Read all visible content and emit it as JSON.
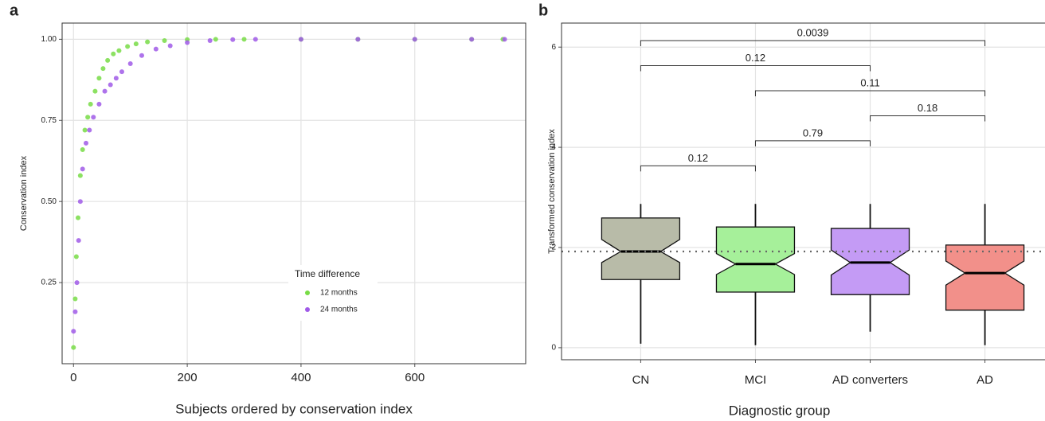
{
  "chart_data": [
    {
      "type": "scatter",
      "panel_label": "a",
      "x_label": "Subjects ordered by conservation index",
      "y_label": "Conservation index",
      "legend_title": "Time difference",
      "xlim": [
        -20,
        795
      ],
      "ylim": [
        0.0,
        1.05
      ],
      "xticks": [
        0,
        200,
        400,
        600
      ],
      "yticks": [
        0.25,
        {
          "value": 0.5,
          "label": "0.50"
        },
        0.75,
        {
          "value": 1.0,
          "label": "1.00"
        }
      ],
      "grid": true,
      "series": [
        {
          "name": "12 months",
          "color": "#78dc46",
          "x": [
            0,
            3,
            5,
            8,
            12,
            16,
            20,
            25,
            30,
            38,
            45,
            52,
            60,
            70,
            80,
            95,
            110,
            130,
            160,
            200,
            250,
            300,
            400,
            500,
            600,
            700,
            755
          ],
          "values": [
            0.05,
            0.2,
            0.33,
            0.45,
            0.58,
            0.66,
            0.72,
            0.76,
            0.8,
            0.84,
            0.88,
            0.91,
            0.935,
            0.955,
            0.965,
            0.978,
            0.986,
            0.992,
            0.996,
            0.999,
            1.0,
            1.0,
            1.0,
            1.0,
            1.0,
            1.0,
            1.0
          ]
        },
        {
          "name": "24 months",
          "color": "#a05ae8",
          "x": [
            0,
            3,
            6,
            9,
            12,
            16,
            22,
            28,
            35,
            45,
            55,
            65,
            75,
            85,
            100,
            120,
            145,
            170,
            200,
            240,
            280,
            320,
            400,
            500,
            600,
            700,
            758
          ],
          "values": [
            0.1,
            0.16,
            0.25,
            0.38,
            0.5,
            0.6,
            0.68,
            0.72,
            0.76,
            0.8,
            0.84,
            0.86,
            0.88,
            0.9,
            0.925,
            0.95,
            0.97,
            0.98,
            0.99,
            0.996,
            0.999,
            1.0,
            1.0,
            1.0,
            1.0,
            1.0,
            1.0
          ]
        }
      ]
    },
    {
      "type": "boxplot",
      "panel_label": "b",
      "x_label": "Diagnostic group",
      "y_label": "Transformed conservation index",
      "ylim": [
        -0.24,
        6.48
      ],
      "yticks": [
        0,
        2,
        4,
        6
      ],
      "grid": true,
      "categories": [
        "CN",
        "MCI",
        "AD converters",
        "AD"
      ],
      "colors": [
        "#b8bba8",
        "#a6f09a",
        "#c49bf5",
        "#f2908a"
      ],
      "boxes": [
        {
          "whislo": 0.08,
          "q1": 1.36,
          "notch_lo": 1.7,
          "med": 1.92,
          "notch_hi": 2.16,
          "q3": 2.59,
          "whishi": 2.87
        },
        {
          "whislo": 0.05,
          "q1": 1.11,
          "notch_lo": 1.46,
          "med": 1.67,
          "notch_hi": 1.88,
          "q3": 2.41,
          "whishi": 2.87
        },
        {
          "whislo": 0.32,
          "q1": 1.06,
          "notch_lo": 1.45,
          "med": 1.7,
          "notch_hi": 1.95,
          "q3": 2.38,
          "whishi": 2.87
        },
        {
          "whislo": 0.05,
          "q1": 0.75,
          "notch_lo": 1.25,
          "med": 1.49,
          "notch_hi": 1.73,
          "q3": 2.05,
          "whishi": 2.87
        }
      ],
      "hline": 1.92,
      "comparisons": [
        {
          "groups": [
            0,
            3
          ],
          "y": 6.13,
          "label": "0.0039"
        },
        {
          "groups": [
            0,
            2
          ],
          "y": 5.63,
          "label": "0.12"
        },
        {
          "groups": [
            1,
            3
          ],
          "y": 5.13,
          "label": "0.11"
        },
        {
          "groups": [
            2,
            3
          ],
          "y": 4.63,
          "label": "0.18"
        },
        {
          "groups": [
            1,
            2
          ],
          "y": 4.13,
          "label": "0.79"
        },
        {
          "groups": [
            0,
            1
          ],
          "y": 3.63,
          "label": "0.12"
        }
      ]
    }
  ]
}
